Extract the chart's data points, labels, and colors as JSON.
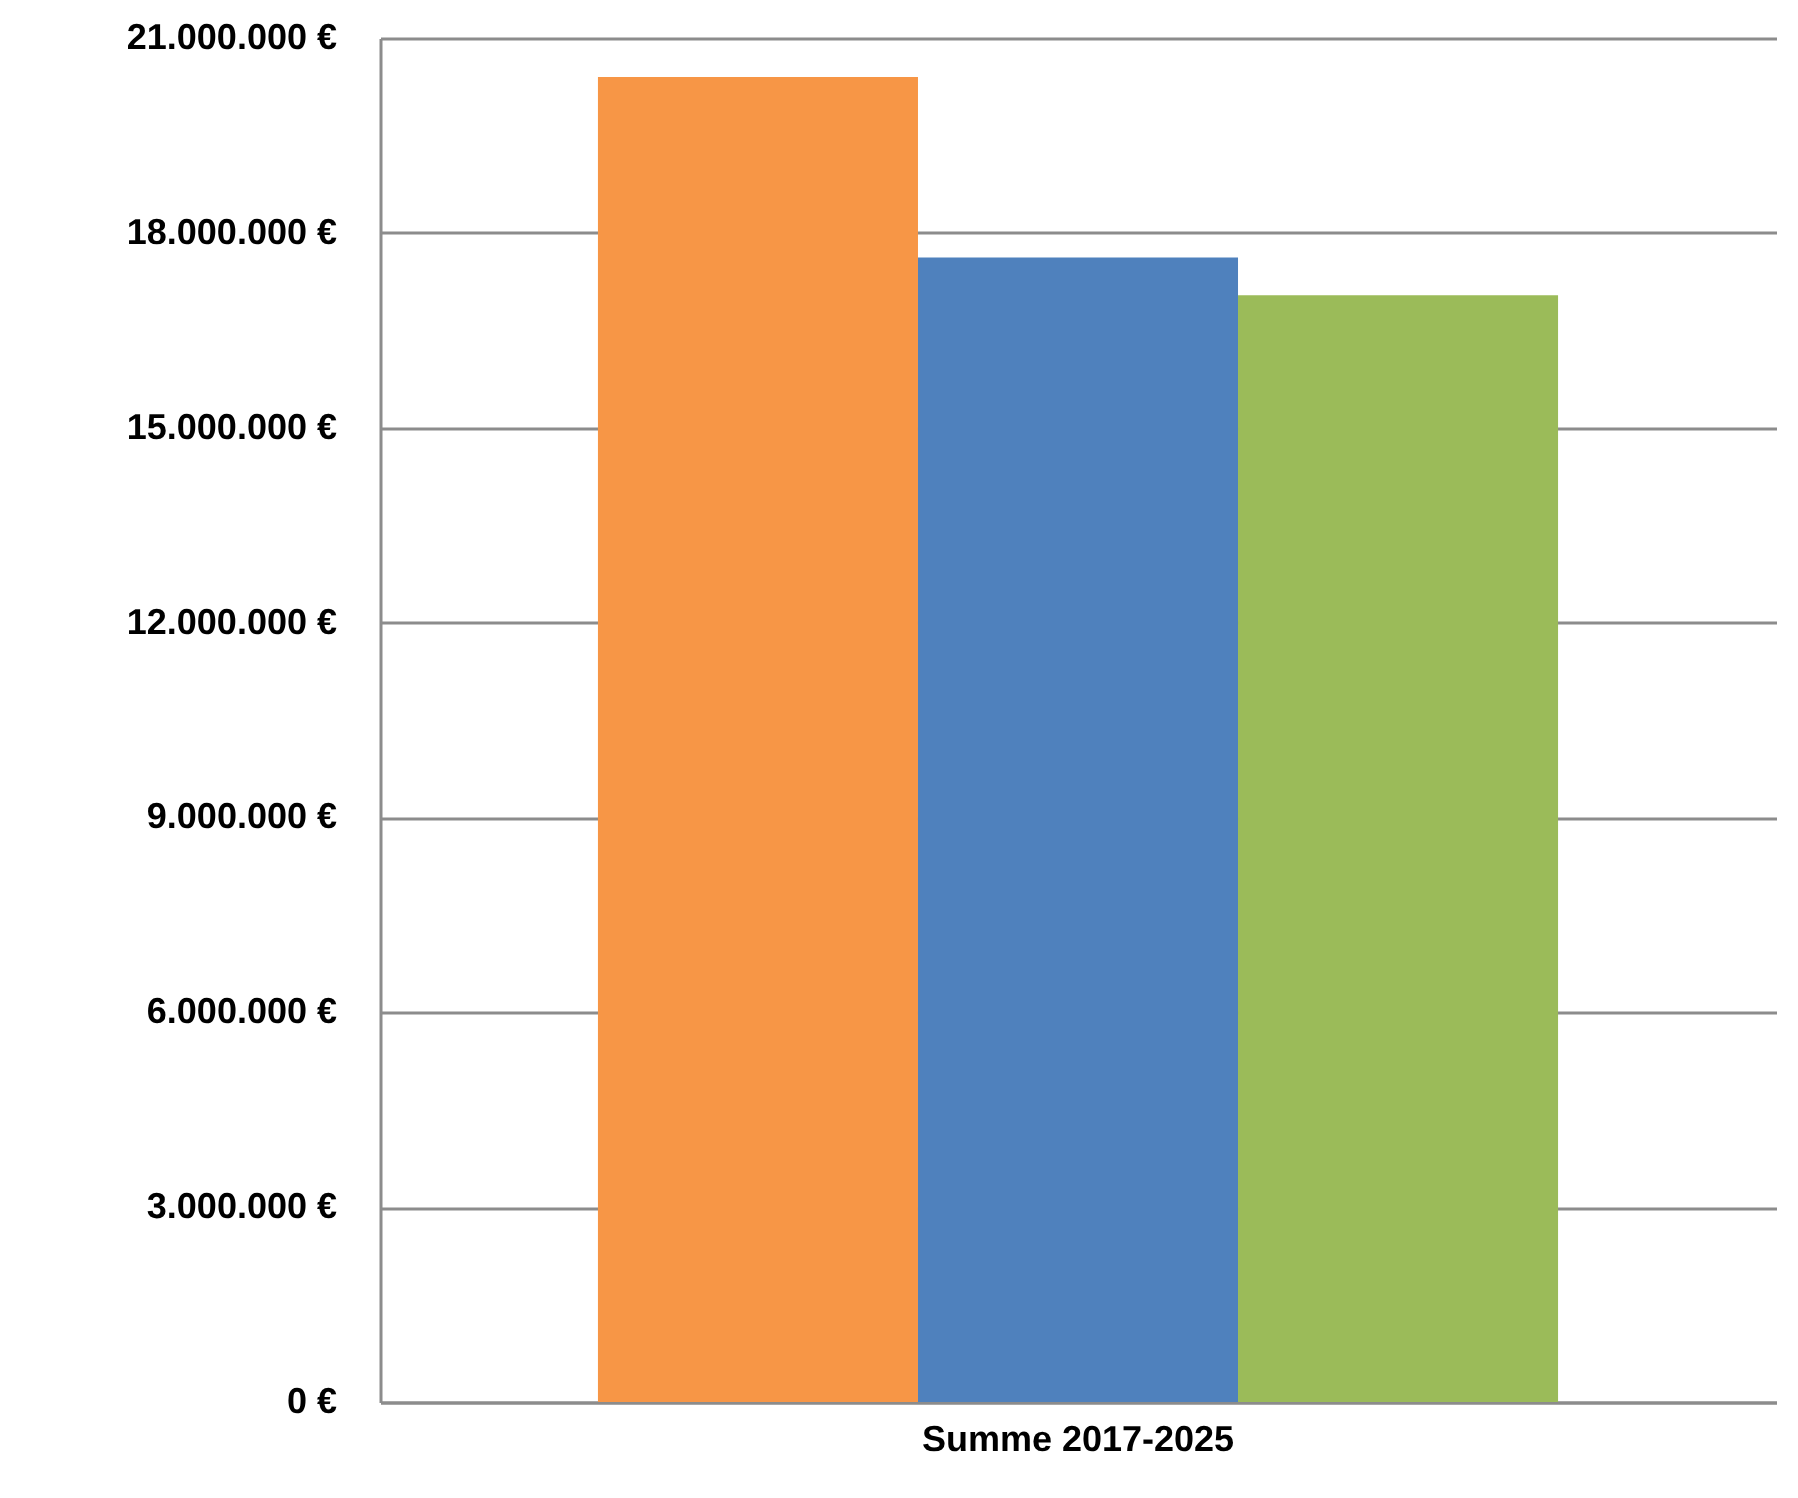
{
  "chart_data": {
    "type": "bar",
    "categories": [
      "Summe 2017-2025"
    ],
    "series": [
      {
        "color": "#f79646",
        "values": [
          20400000
        ]
      },
      {
        "color": "#4f81bd",
        "values": [
          17620000
        ]
      },
      {
        "color": "#9bbb59",
        "values": [
          17040000
        ]
      }
    ],
    "ylim": [
      0,
      21000000
    ],
    "yticks": [
      {
        "value": 0,
        "label": "0 €"
      },
      {
        "value": 3000000,
        "label": "3.000.000 €"
      },
      {
        "value": 6000000,
        "label": "6.000.000 €"
      },
      {
        "value": 9000000,
        "label": "9.000.000 €"
      },
      {
        "value": 12000000,
        "label": "12.000.000 €"
      },
      {
        "value": 15000000,
        "label": "15.000.000 €"
      },
      {
        "value": 18000000,
        "label": "18.000.000 €"
      },
      {
        "value": 21000000,
        "label": "21.000.000 €"
      }
    ],
    "grid": "y",
    "legend": false
  }
}
